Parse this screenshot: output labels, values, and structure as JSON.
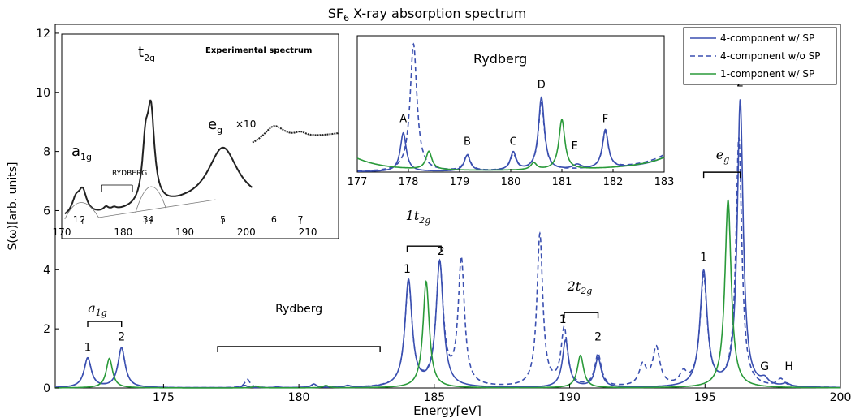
{
  "chart_data": [
    {
      "type": "line",
      "title": "SF",
      "title_sub": "6",
      "title_rest": " X-ray absorption spectrum",
      "xlabel": "Energy[eV]",
      "ylabel": "S(ω)[arb. units]",
      "xlim": [
        171,
        200
      ],
      "ylim": [
        0,
        12.3
      ],
      "x_ticks": [
        175,
        180,
        185,
        190,
        195,
        200
      ],
      "y_ticks": [
        0,
        2,
        4,
        6,
        8,
        10,
        12
      ],
      "legend_position": "top-right",
      "series": [
        {
          "name": "4-component w/ SP",
          "style": "solid",
          "color": "#3a4fb0",
          "peaks": [
            [
              172.2,
              1.0,
              0.16
            ],
            [
              173.45,
              1.35,
              0.16
            ],
            [
              178.0,
              0.08,
              0.12
            ],
            [
              179.2,
              0.03,
              0.1
            ],
            [
              180.55,
              0.12,
              0.12
            ],
            [
              181.8,
              0.06,
              0.12
            ],
            [
              184.05,
              3.6,
              0.16
            ],
            [
              185.2,
              4.25,
              0.16
            ],
            [
              189.85,
              1.6,
              0.14
            ],
            [
              191.05,
              1.0,
              0.14
            ],
            [
              194.95,
              3.9,
              0.16
            ],
            [
              196.3,
              9.7,
              0.13
            ],
            [
              197.2,
              0.2,
              0.16
            ],
            [
              198.0,
              0.1,
              0.16
            ]
          ]
        },
        {
          "name": "4-component w/o SP",
          "style": "dashed",
          "color": "#3a4fb0",
          "peaks": [
            [
              172.2,
              1.0,
              0.16
            ],
            [
              173.45,
              1.35,
              0.16
            ],
            [
              178.1,
              0.28,
              0.12
            ],
            [
              180.55,
              0.1,
              0.12
            ],
            [
              181.8,
              0.05,
              0.12
            ],
            [
              184.05,
              3.5,
              0.16
            ],
            [
              185.2,
              4.1,
              0.16
            ],
            [
              186.0,
              4.25,
              0.14
            ],
            [
              188.9,
              5.15,
              0.13
            ],
            [
              189.8,
              1.95,
              0.14
            ],
            [
              191.05,
              1.1,
              0.14
            ],
            [
              192.7,
              0.7,
              0.16
            ],
            [
              193.2,
              1.3,
              0.16
            ],
            [
              194.2,
              0.4,
              0.16
            ],
            [
              194.95,
              3.7,
              0.16
            ],
            [
              196.25,
              8.4,
              0.13
            ],
            [
              197.8,
              0.25,
              0.16
            ]
          ]
        },
        {
          "name": "1-component w/ SP",
          "style": "solid",
          "color": "#2a9a3a",
          "peaks": [
            [
              173.0,
              1.0,
              0.14
            ],
            [
              178.4,
              0.06,
              0.12
            ],
            [
              181.0,
              0.08,
              0.12
            ],
            [
              184.7,
              3.6,
              0.14
            ],
            [
              190.4,
              1.1,
              0.14
            ],
            [
              195.85,
              6.35,
              0.14
            ]
          ]
        }
      ],
      "annotations": [
        {
          "text": "1",
          "x": 172.2,
          "y": 1.25
        },
        {
          "text": "2",
          "x": 173.45,
          "y": 1.6
        },
        {
          "text": "Rydberg",
          "x": 180.0,
          "y": 2.55
        },
        {
          "text": "1",
          "x": 184.0,
          "y": 3.9
        },
        {
          "text": "2",
          "x": 185.25,
          "y": 4.5
        },
        {
          "text": "1",
          "x": 189.75,
          "y": 2.2
        },
        {
          "text": "2",
          "x": 191.05,
          "y": 1.6
        },
        {
          "text": "1",
          "x": 194.95,
          "y": 4.3
        },
        {
          "text": "2",
          "x": 196.3,
          "y": 10.2
        },
        {
          "text": "G",
          "x": 197.2,
          "y": 0.6
        },
        {
          "text": "H",
          "x": 198.1,
          "y": 0.6
        }
      ],
      "group_labels": {
        "a1g": {
          "main": "a",
          "sub": "1g"
        },
        "t1g": {
          "main": "1t",
          "sub": "2g"
        },
        "t2g": {
          "main": "2t",
          "sub": "2g"
        },
        "eg": {
          "main": "e",
          "sub": "g"
        }
      }
    },
    {
      "type": "line",
      "title": "Rydberg",
      "xlim": [
        177,
        183
      ],
      "x_ticks": [
        177,
        178,
        179,
        180,
        181,
        182,
        183
      ],
      "peak_labels": [
        "A",
        "B",
        "C",
        "D",
        "E",
        "F"
      ]
    },
    {
      "type": "line",
      "title": "Experimental spectrum",
      "xlim": [
        170,
        215
      ],
      "x_ticks": [
        170,
        180,
        190,
        200,
        210
      ],
      "labels": {
        "a": "a",
        "a_sub": "1g",
        "t": "t",
        "t_sub": "2g",
        "e": "e",
        "e_sub": "g",
        "rydberg": "RYDBERG",
        "x10": "×10"
      },
      "markers": [
        {
          "text": "1",
          "x": 172.3
        },
        {
          "text": "2",
          "x": 173.4
        },
        {
          "text": "3",
          "x": 183.6
        },
        {
          "text": "4",
          "x": 184.5
        },
        {
          "text": "5",
          "x": 196.2
        },
        {
          "text": "6",
          "x": 204.5
        },
        {
          "text": "7",
          "x": 208.8
        }
      ]
    }
  ]
}
